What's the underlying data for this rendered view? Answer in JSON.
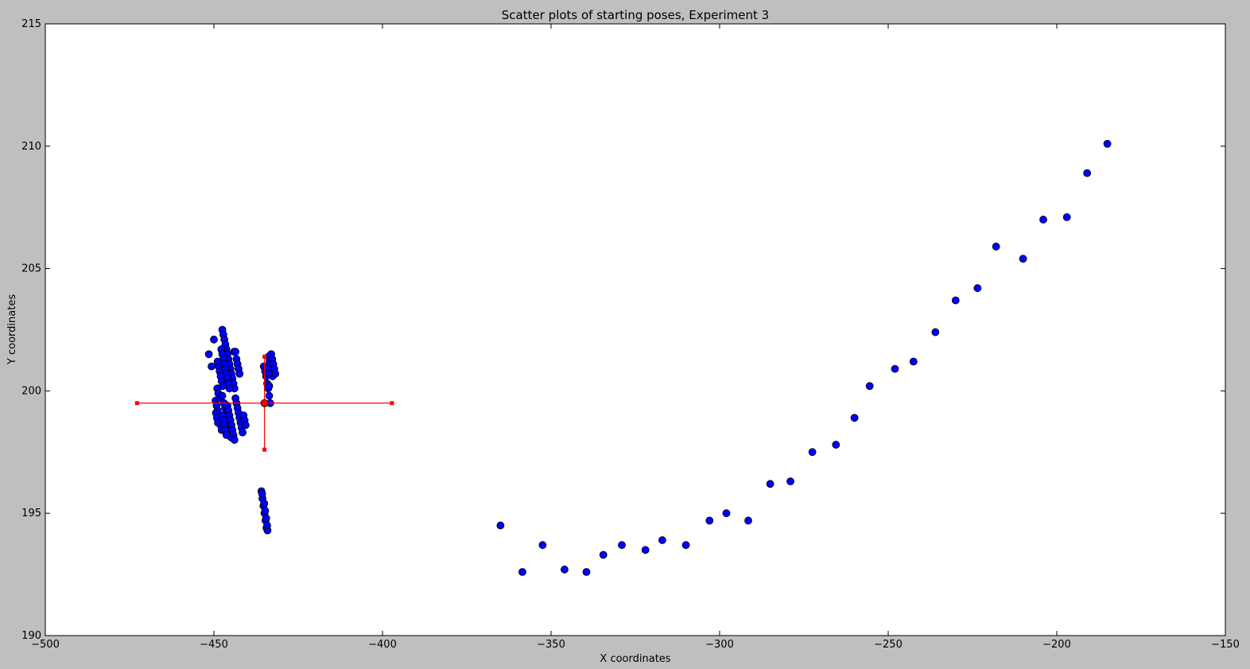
{
  "chart_data": {
    "type": "scatter",
    "title": "Scatter plots of starting poses, Experiment 3",
    "xlabel": "X coordinates",
    "ylabel": "Y coordinates",
    "xlim": [
      -500,
      -150
    ],
    "ylim": [
      190,
      215
    ],
    "xticks": [
      -500,
      -450,
      -400,
      -350,
      -300,
      -250,
      -200,
      -150
    ],
    "yticks": [
      190,
      195,
      200,
      205,
      210,
      215
    ],
    "xtick_labels": [
      "−500",
      "−450",
      "−400",
      "−350",
      "−300",
      "−250",
      "−200",
      "−150"
    ],
    "ytick_labels": [
      "190",
      "195",
      "200",
      "205",
      "210",
      "215"
    ],
    "grid": false,
    "legend": "none",
    "colors": {
      "points": "#0000ff",
      "errorbar": "#ff0000",
      "plot_background": "#ffffff",
      "figure_background": "#bfbfbf"
    },
    "series": [
      {
        "marker": "circle",
        "color": "#0000ff",
        "points": [
          [
            -451.5,
            201.5
          ],
          [
            -450.7,
            201.0
          ],
          [
            -450.0,
            202.1
          ],
          [
            -447.5,
            202.5
          ],
          [
            -447.2,
            202.3
          ],
          [
            -446.9,
            202.1
          ],
          [
            -446.6,
            201.9
          ],
          [
            -446.3,
            201.7
          ],
          [
            -446.0,
            201.5
          ],
          [
            -445.7,
            201.3
          ],
          [
            -445.4,
            201.1
          ],
          [
            -445.1,
            200.9
          ],
          [
            -444.8,
            200.7
          ],
          [
            -444.5,
            200.5
          ],
          [
            -444.2,
            200.3
          ],
          [
            -443.9,
            200.1
          ],
          [
            -447.8,
            201.7
          ],
          [
            -447.5,
            201.5
          ],
          [
            -447.2,
            201.3
          ],
          [
            -446.9,
            201.1
          ],
          [
            -446.6,
            200.9
          ],
          [
            -446.3,
            200.7
          ],
          [
            -446.0,
            200.5
          ],
          [
            -445.7,
            200.3
          ],
          [
            -445.4,
            200.1
          ],
          [
            -448.6,
            201.0
          ],
          [
            -448.3,
            200.8
          ],
          [
            -448.0,
            200.6
          ],
          [
            -447.7,
            200.4
          ],
          [
            -447.4,
            200.2
          ],
          [
            -448.9,
            201.2
          ],
          [
            -444.0,
            201.6
          ],
          [
            -443.6,
            201.6
          ],
          [
            -443.3,
            201.3
          ],
          [
            -443.0,
            201.1
          ],
          [
            -442.7,
            200.9
          ],
          [
            -442.4,
            200.7
          ],
          [
            -449.5,
            199.6
          ],
          [
            -449.2,
            199.4
          ],
          [
            -448.9,
            199.2
          ],
          [
            -448.6,
            199.0
          ],
          [
            -448.3,
            198.8
          ],
          [
            -448.0,
            198.6
          ],
          [
            -447.7,
            198.4
          ],
          [
            -449.0,
            200.1
          ],
          [
            -448.7,
            199.9
          ],
          [
            -448.4,
            199.7
          ],
          [
            -447.5,
            199.8
          ],
          [
            -449.4,
            199.1
          ],
          [
            -449.1,
            198.9
          ],
          [
            -448.8,
            198.7
          ],
          [
            -447.0,
            199.5
          ],
          [
            -446.7,
            199.3
          ],
          [
            -446.4,
            199.1
          ],
          [
            -446.1,
            198.9
          ],
          [
            -445.8,
            198.7
          ],
          [
            -445.5,
            198.5
          ],
          [
            -445.2,
            198.3
          ],
          [
            -444.9,
            198.1
          ],
          [
            -447.5,
            199.0
          ],
          [
            -447.2,
            198.8
          ],
          [
            -446.9,
            198.6
          ],
          [
            -446.6,
            198.4
          ],
          [
            -446.3,
            198.2
          ],
          [
            -446.0,
            199.4
          ],
          [
            -445.7,
            199.2
          ],
          [
            -445.4,
            199.0
          ],
          [
            -445.1,
            198.8
          ],
          [
            -444.8,
            198.6
          ],
          [
            -444.5,
            198.4
          ],
          [
            -444.2,
            198.2
          ],
          [
            -443.9,
            198.0
          ],
          [
            -443.6,
            199.7
          ],
          [
            -443.3,
            199.5
          ],
          [
            -443.0,
            199.3
          ],
          [
            -442.7,
            199.1
          ],
          [
            -442.4,
            198.9
          ],
          [
            -442.1,
            198.7
          ],
          [
            -441.8,
            198.5
          ],
          [
            -441.5,
            198.3
          ],
          [
            -441.2,
            199.0
          ],
          [
            -440.9,
            198.8
          ],
          [
            -440.6,
            198.6
          ],
          [
            -435.2,
            201.0
          ],
          [
            -434.8,
            200.8
          ],
          [
            -434.5,
            200.6
          ],
          [
            -434.2,
            200.3
          ],
          [
            -433.9,
            200.1
          ],
          [
            -433.6,
            199.8
          ],
          [
            -433.3,
            199.5
          ],
          [
            -433.8,
            201.4
          ],
          [
            -433.5,
            201.2
          ],
          [
            -433.2,
            201.0
          ],
          [
            -432.9,
            200.8
          ],
          [
            -432.6,
            200.6
          ],
          [
            -433.0,
            201.5
          ],
          [
            -432.7,
            201.3
          ],
          [
            -432.4,
            201.1
          ],
          [
            -432.1,
            200.9
          ],
          [
            -431.8,
            200.7
          ],
          [
            -434.0,
            200.9
          ],
          [
            -433.7,
            200.7
          ],
          [
            -433.6,
            200.2
          ],
          [
            -435.0,
            199.5
          ],
          [
            -435.9,
            195.9
          ],
          [
            -435.6,
            195.6
          ],
          [
            -435.3,
            195.3
          ],
          [
            -435.0,
            195.0
          ],
          [
            -434.7,
            194.7
          ],
          [
            -434.4,
            194.4
          ],
          [
            -434.1,
            194.3
          ],
          [
            -435.7,
            195.8
          ],
          [
            -435.1,
            195.4
          ],
          [
            -434.8,
            195.1
          ],
          [
            -434.5,
            194.8
          ],
          [
            -434.2,
            194.5
          ],
          [
            -365.0,
            194.5
          ],
          [
            -358.5,
            192.6
          ],
          [
            -352.5,
            193.7
          ],
          [
            -346.0,
            192.7
          ],
          [
            -339.5,
            192.6
          ],
          [
            -334.5,
            193.3
          ],
          [
            -329.0,
            193.7
          ],
          [
            -322.0,
            193.5
          ],
          [
            -317.0,
            193.9
          ],
          [
            -310.0,
            193.7
          ],
          [
            -303.0,
            194.7
          ],
          [
            -298.0,
            195.0
          ],
          [
            -291.5,
            194.7
          ],
          [
            -285.0,
            196.2
          ],
          [
            -279.0,
            196.3
          ],
          [
            -272.5,
            197.5
          ],
          [
            -265.5,
            197.8
          ],
          [
            -260.0,
            198.9
          ],
          [
            -255.5,
            200.2
          ],
          [
            -248.0,
            200.9
          ],
          [
            -242.5,
            201.2
          ],
          [
            -236.0,
            202.4
          ],
          [
            -230.0,
            203.7
          ],
          [
            -223.5,
            204.2
          ],
          [
            -218.0,
            205.9
          ],
          [
            -210.0,
            205.4
          ],
          [
            -204.0,
            207.0
          ],
          [
            -197.0,
            207.1
          ],
          [
            -191.0,
            208.9
          ],
          [
            -185.0,
            210.1
          ]
        ]
      }
    ],
    "errorbar": {
      "x": -435.0,
      "y": 199.5,
      "xerr": 37.8,
      "yerr": 1.9,
      "color": "#ff0000"
    }
  }
}
